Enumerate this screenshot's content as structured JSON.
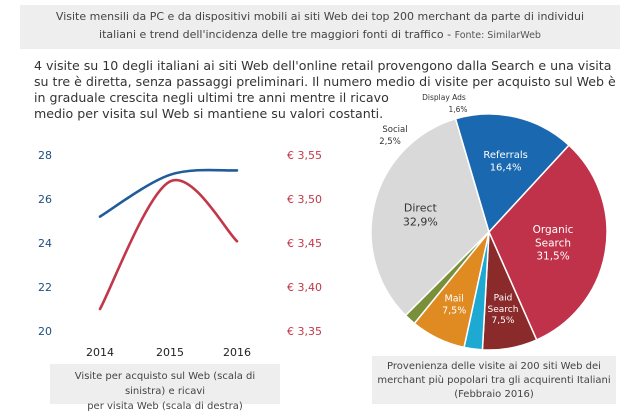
{
  "header": {
    "title_line1": "Visite mensili da PC e da dispositivi mobili ai siti Web dei top 200 merchant  da parte di individui",
    "title_line2": "italiani e trend dell'incidenza delle tre maggiori fonti di traffico - ",
    "source": "Fonte: SimilarWeb"
  },
  "intro": {
    "line1": "4 visite su 10 degli italiani ai siti Web dell'online retail provengono dalla Search e una visita",
    "line2": "su tre è diretta, senza passaggi preliminari. Il numero medio di visite per acquisto sul Web è",
    "line3": "in graduale crescita negli ultimi tre anni mentre il ricavo",
    "line4": "medio per visita sul Web si mantiene su valori costanti."
  },
  "captions": {
    "left_line1": "Visite per acquisto sul Web (scala di sinistra) e ricavi",
    "left_line2": "per visita Web (scala di destra)",
    "right_line1": "Provenienza delle visite ai 200 siti Web dei",
    "right_line2": "merchant più popolari tra gli acquirenti Italiani",
    "right_line3": "(Febbraio 2016)"
  },
  "chart_data": [
    {
      "type": "line",
      "x": [
        "2014",
        "2015",
        "2016"
      ],
      "left_axis": {
        "ylim": [
          20,
          28
        ],
        "ticks": [
          "20",
          "22",
          "24",
          "26",
          "28"
        ]
      },
      "right_axis": {
        "ylim": [
          3.35,
          3.55
        ],
        "ticks": [
          "€ 3,35",
          "€ 3,40",
          "€ 3,45",
          "€ 3,50",
          "€ 3,55"
        ]
      },
      "series": [
        {
          "values": [
            25.2,
            27.1,
            27.3
          ],
          "axis": "left",
          "color": "#1f5c99"
        },
        {
          "values": [
            3.375,
            3.52,
            3.452
          ],
          "axis": "right",
          "color": "#c0384a"
        }
      ],
      "grid": false
    },
    {
      "type": "pie",
      "slices": [
        {
          "label": "Direct",
          "value_label": "32,9%",
          "value": 32.9,
          "color": "#d9d9d9",
          "text_color": "#333333"
        },
        {
          "label": "Referrals",
          "value_label": "16,4%",
          "value": 16.4,
          "color": "#1a68b0",
          "text_color": "#ffffff"
        },
        {
          "label": "Organic Search",
          "value_label": "31,5%",
          "value": 31.5,
          "color": "#c0314a",
          "text_color": "#ffffff"
        },
        {
          "label": "Paid Search",
          "value_label": "7,5%",
          "value": 7.5,
          "color": "#8b2a2a",
          "text_color": "#ffffff"
        },
        {
          "label": "Social",
          "value_label": "2,5%",
          "value": 2.5,
          "color": "#1ea9d3",
          "text_color": "#333333"
        },
        {
          "label": "Mail",
          "value_label": "7,5%",
          "value": 7.5,
          "color": "#e08a22",
          "text_color": "#ffffff"
        },
        {
          "label": "Display Ads",
          "value_label": "1,6%",
          "value": 1.6,
          "color": "#7a8f3a",
          "text_color": "#333333"
        }
      ]
    }
  ]
}
